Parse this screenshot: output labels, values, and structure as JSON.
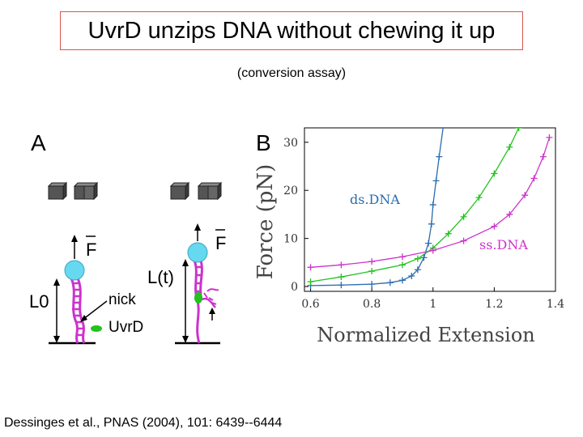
{
  "slide": {
    "title": "UvrD unzips DNA without chewing it up",
    "subtitle": "(conversion assay)",
    "citation": "Dessinges et al., PNAS (2004), 101: 6439--6444"
  },
  "panel_a": {
    "label": "A",
    "force_label": "F",
    "length_initial": "L0",
    "length_time": "L(t)",
    "nick_label": "nick",
    "protein_label": "UvrD"
  },
  "panel_b": {
    "label": "B",
    "colors": {
      "ds": "#2b6cb0",
      "conv": "#22c21f",
      "ss": "#cc33cc"
    }
  },
  "chart_data": {
    "type": "line",
    "xlabel": "Normalized Extension",
    "ylabel": "Force (pN)",
    "xlim": [
      0.58,
      1.4
    ],
    "ylim": [
      -1,
      33
    ],
    "x_ticks": [
      "0.6",
      "0.8",
      "1",
      "1.2",
      "1.4"
    ],
    "y_ticks": [
      "0",
      "10",
      "20",
      "30"
    ],
    "annotations": [
      "ds.DNA",
      "ss.DNA"
    ],
    "series": [
      {
        "name": "ds.DNA",
        "color": "#2b6cb0",
        "x": [
          0.6,
          0.7,
          0.8,
          0.86,
          0.9,
          0.93,
          0.95,
          0.97,
          0.985,
          0.995,
          1.0,
          1.01,
          1.02,
          1.035
        ],
        "y": [
          0.2,
          0.3,
          0.5,
          0.8,
          1.3,
          2.2,
          3.5,
          6.0,
          9.0,
          13.0,
          17.0,
          22.0,
          27.0,
          34.0
        ]
      },
      {
        "name": "",
        "color": "#22c21f",
        "x": [
          0.6,
          0.7,
          0.8,
          0.9,
          0.95,
          1.0,
          1.05,
          1.1,
          1.15,
          1.2,
          1.25,
          1.28
        ],
        "y": [
          1.0,
          2.0,
          3.2,
          4.5,
          5.8,
          8.0,
          11.0,
          14.5,
          18.5,
          23.5,
          29.0,
          33.0
        ]
      },
      {
        "name": "ss.DNA",
        "color": "#cc33cc",
        "x": [
          0.6,
          0.7,
          0.8,
          0.9,
          1.0,
          1.1,
          1.2,
          1.25,
          1.3,
          1.33,
          1.36,
          1.38
        ],
        "y": [
          4.0,
          4.5,
          5.2,
          6.2,
          7.5,
          9.5,
          12.5,
          15.0,
          19.0,
          22.5,
          27.0,
          31.0
        ]
      }
    ]
  }
}
